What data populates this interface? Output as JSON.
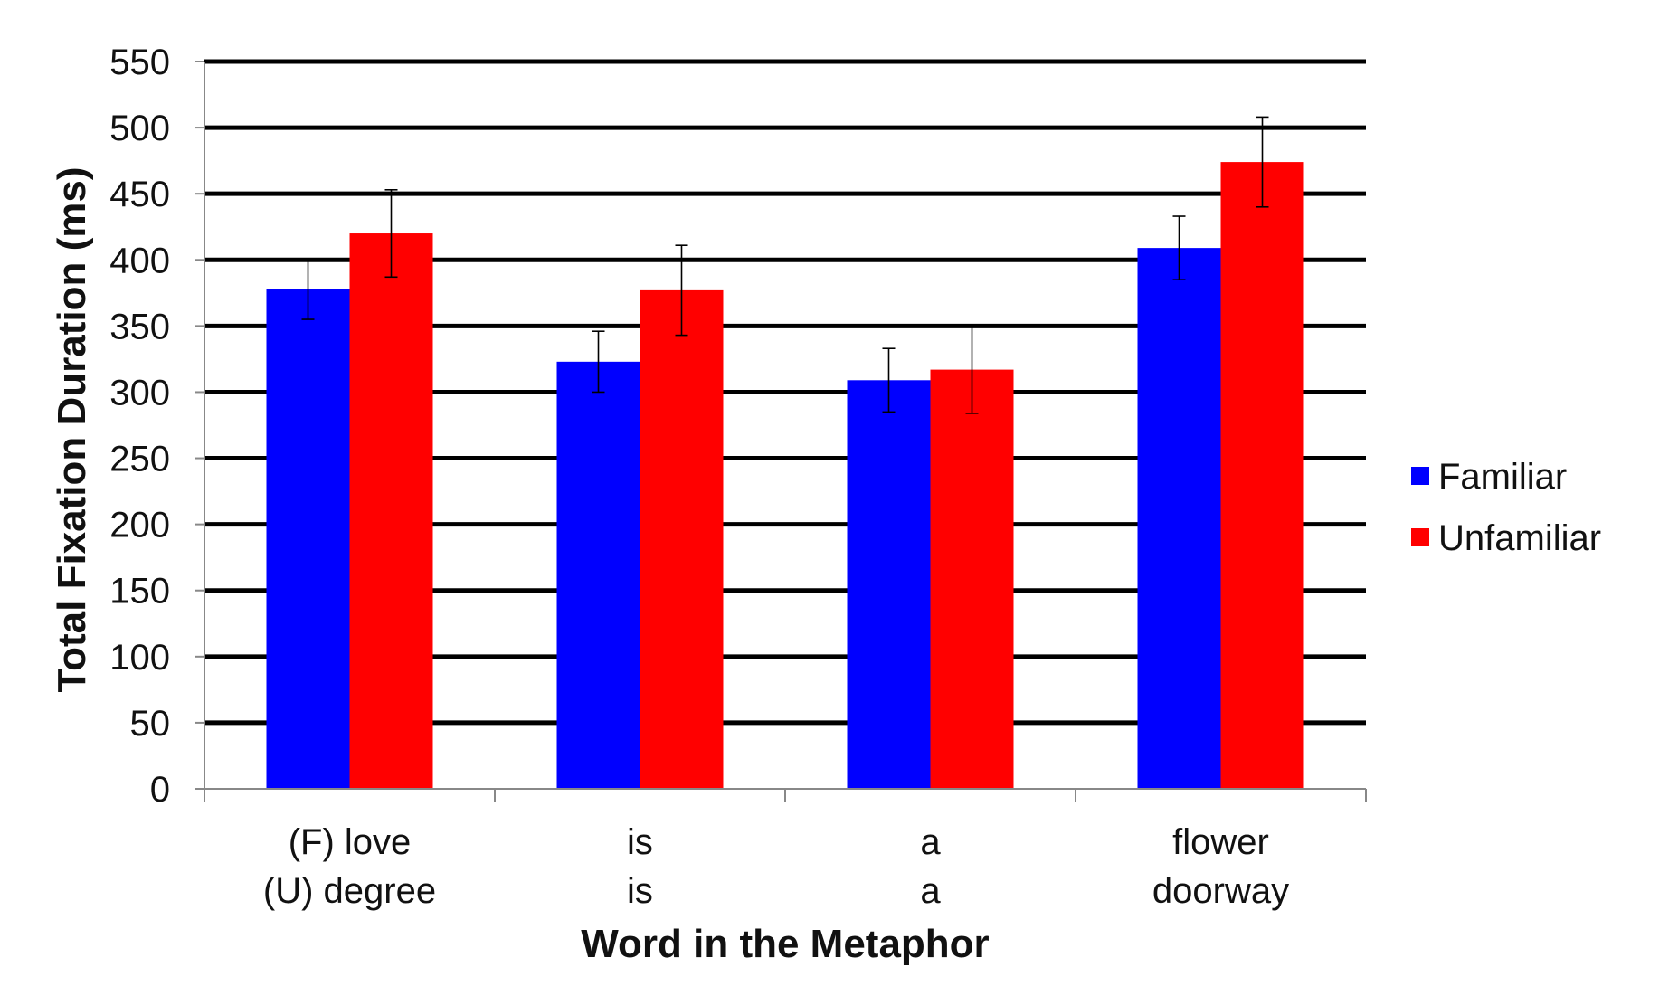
{
  "chart_data": {
    "type": "bar",
    "xlabel": "Word in the Metaphor",
    "ylabel": "Total Fixation Duration (ms)",
    "ylim": [
      0,
      550
    ],
    "ytick_step": 50,
    "grid": true,
    "legend": "right",
    "categories": [
      {
        "line1": "(F) love",
        "line2": "(U) degree"
      },
      {
        "line1": "is",
        "line2": "is"
      },
      {
        "line1": "a",
        "line2": "a"
      },
      {
        "line1": "flower",
        "line2": "doorway"
      }
    ],
    "series": [
      {
        "name": "Familiar",
        "color": "#0000ff",
        "values": [
          378,
          323,
          309,
          409
        ],
        "errors": [
          23,
          23,
          24,
          24
        ]
      },
      {
        "name": "Unfamiliar",
        "color": "#ff0000",
        "values": [
          420,
          377,
          317,
          474
        ],
        "errors": [
          33,
          34,
          33,
          34
        ]
      }
    ]
  }
}
